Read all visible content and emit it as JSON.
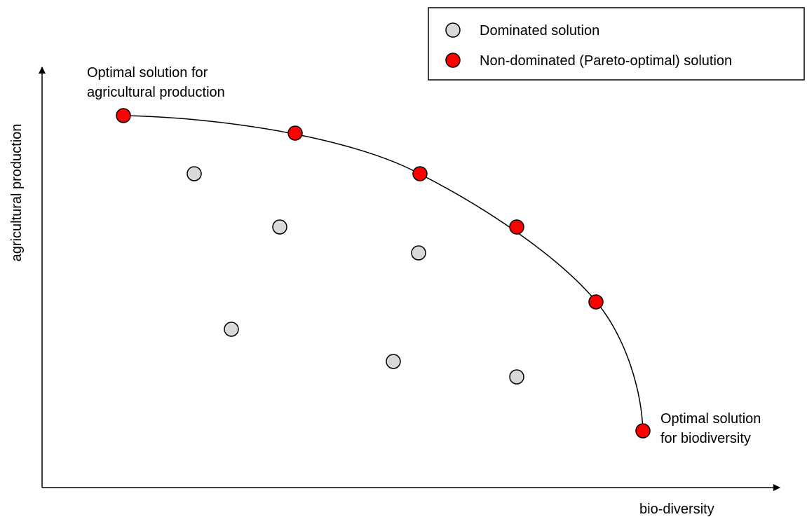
{
  "legend": {
    "dominated_label": "Dominated solution",
    "nondominated_label": "Non-dominated (Pareto-optimal) solution"
  },
  "axes": {
    "y_label": "agricultural production",
    "x_label": "bio-diversity"
  },
  "annotations": {
    "top_line1": "Optimal solution for",
    "top_line2": "agricultural production",
    "bottom_line1": "Optimal solution",
    "bottom_line2": "for biodiversity"
  },
  "colors": {
    "dominated_fill": "#d9d9d9",
    "nondominated_fill": "#ff0000",
    "stroke": "#000000"
  }
}
